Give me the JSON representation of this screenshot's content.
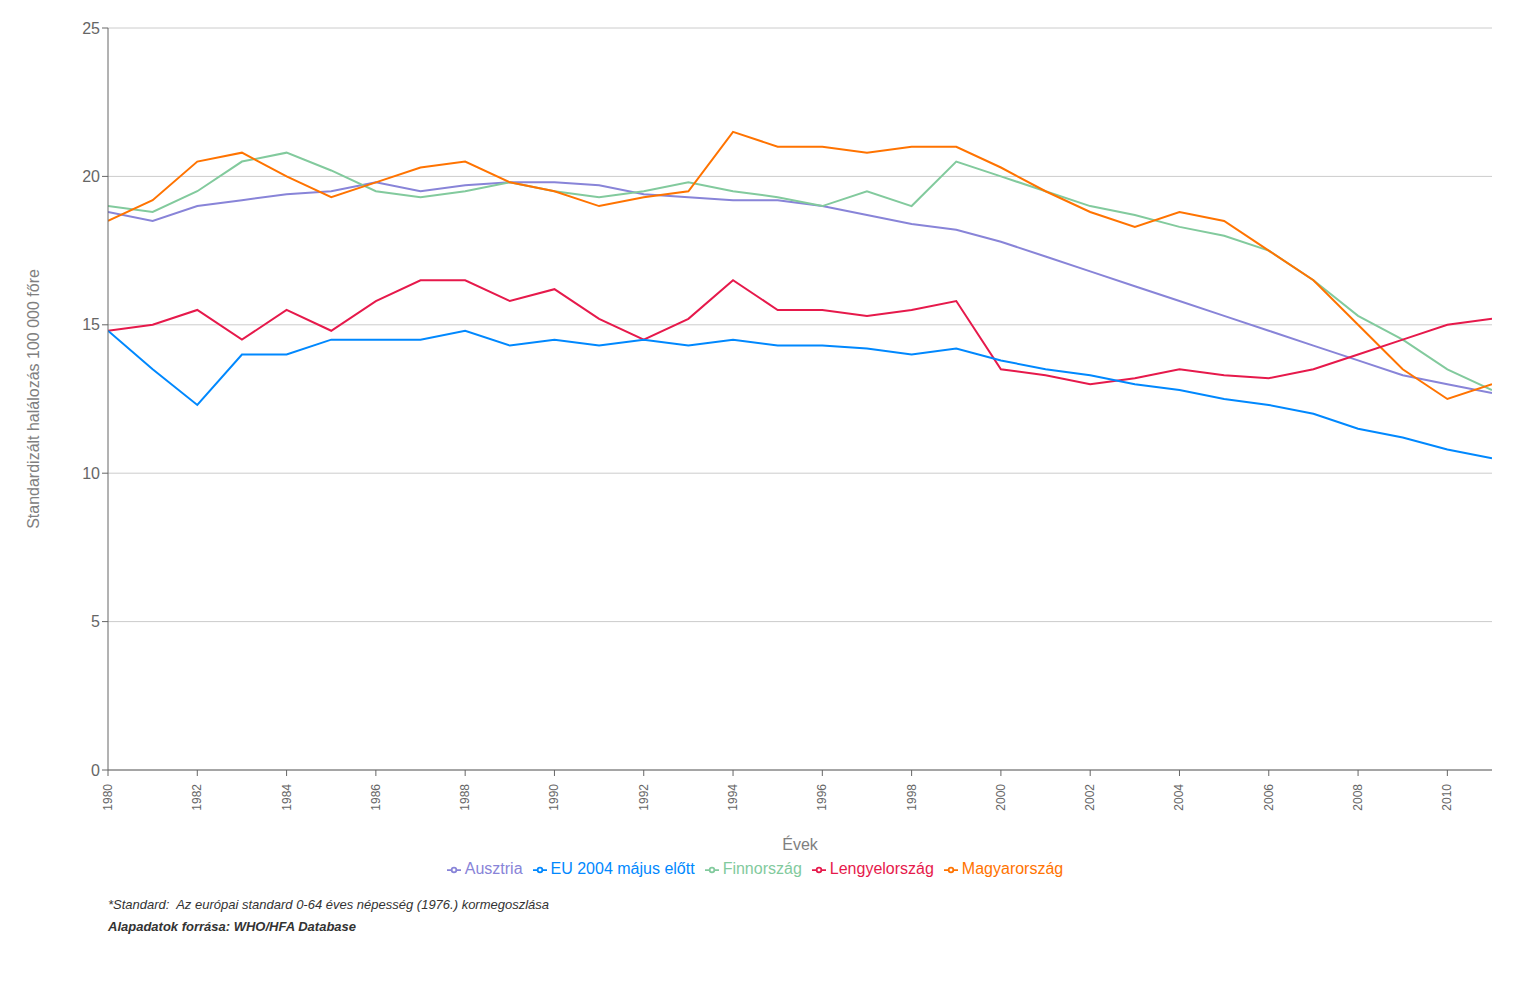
{
  "chart_data": {
    "type": "line",
    "xlabel": "Évek",
    "ylabel": "Standardizált halálozás 100 000 főre",
    "x": [
      1980,
      1981,
      1982,
      1983,
      1984,
      1985,
      1986,
      1987,
      1988,
      1989,
      1990,
      1991,
      1992,
      1993,
      1994,
      1995,
      1996,
      1997,
      1998,
      1999,
      2000,
      2001,
      2002,
      2003,
      2004,
      2005,
      2006,
      2007,
      2008,
      2009,
      2010,
      2011
    ],
    "xlim": [
      1980,
      2011
    ],
    "xticks": [
      1980,
      1982,
      1984,
      1986,
      1988,
      1990,
      1992,
      1994,
      1996,
      1998,
      2000,
      2002,
      2004,
      2006,
      2008,
      2010
    ],
    "ylim": [
      0,
      25
    ],
    "yticks": [
      0,
      5,
      10,
      15,
      20,
      25
    ],
    "grid": true,
    "legend": "bottom",
    "series": [
      {
        "name": "Ausztria",
        "color": "#8884d8",
        "values": [
          18.8,
          18.5,
          19.0,
          19.2,
          19.4,
          19.5,
          19.8,
          19.5,
          19.7,
          19.8,
          19.8,
          19.7,
          19.4,
          19.3,
          19.2,
          19.2,
          19.0,
          18.7,
          18.4,
          18.2,
          17.8,
          17.3,
          16.8,
          16.3,
          15.8,
          15.3,
          14.8,
          14.3,
          13.8,
          13.3,
          13.0,
          12.7
        ]
      },
      {
        "name": "Finnország",
        "color": "#82ca9d",
        "values": [
          19.0,
          18.8,
          19.5,
          20.5,
          20.8,
          20.2,
          19.5,
          19.3,
          19.5,
          19.8,
          19.5,
          19.3,
          19.5,
          19.8,
          19.5,
          19.3,
          19.0,
          19.5,
          19.0,
          20.5,
          20.0,
          19.5,
          19.0,
          18.7,
          18.3,
          18.0,
          17.5,
          16.5,
          15.3,
          14.5,
          13.5,
          12.8
        ]
      },
      {
        "name": "Magyarország",
        "color": "#ff7300",
        "values": [
          18.5,
          19.2,
          20.5,
          20.8,
          20.0,
          19.3,
          19.8,
          20.3,
          20.5,
          19.8,
          19.5,
          19.0,
          19.3,
          19.5,
          21.5,
          21.0,
          21.0,
          20.8,
          21.0,
          21.0,
          20.3,
          19.5,
          18.8,
          18.3,
          18.8,
          18.5,
          17.5,
          16.5,
          15.0,
          13.5,
          12.5,
          13.0
        ]
      },
      {
        "name": "Lengyelország",
        "color": "#e6194b",
        "values": [
          14.8,
          15.0,
          15.5,
          14.5,
          15.5,
          14.8,
          15.8,
          16.5,
          16.5,
          15.8,
          16.2,
          15.2,
          14.5,
          15.2,
          16.5,
          15.5,
          15.5,
          15.3,
          15.5,
          15.8,
          13.5,
          13.3,
          13.0,
          13.2,
          13.5,
          13.3,
          13.2,
          13.5,
          14.0,
          14.5,
          15.0,
          15.2
        ]
      },
      {
        "name": "EU 2004 május előtt",
        "color": "#0088fe",
        "values": [
          14.8,
          13.5,
          12.3,
          14.0,
          14.0,
          14.5,
          14.5,
          14.5,
          14.8,
          14.3,
          14.5,
          14.3,
          14.5,
          14.3,
          14.5,
          14.3,
          14.3,
          14.2,
          14.0,
          14.2,
          13.8,
          13.5,
          13.3,
          13.0,
          12.8,
          12.5,
          12.3,
          12.0,
          11.5,
          11.2,
          10.8,
          10.5
        ]
      }
    ],
    "annotations": [
      "*Standard:  Az európai standard 0-64 éves népesség (1976.) kormegoszlása",
      "Alapadatok forrása: WHO/HFA Database"
    ]
  }
}
